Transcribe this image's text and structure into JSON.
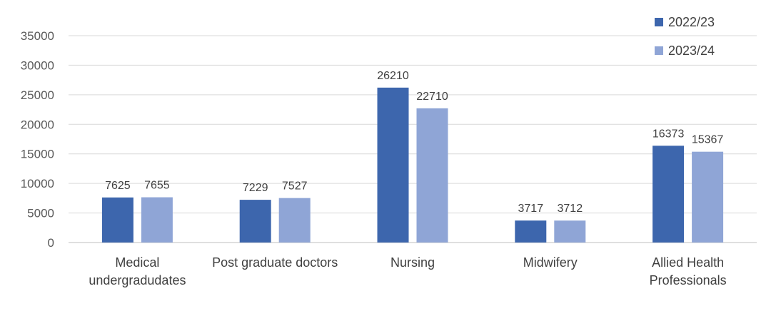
{
  "chart_data": {
    "type": "bar",
    "categories": [
      [
        "Medical",
        "undergradudates"
      ],
      [
        "Post graduate doctors"
      ],
      [
        "Nursing"
      ],
      [
        "Midwifery"
      ],
      [
        "Allied Health",
        "Professionals"
      ]
    ],
    "series": [
      {
        "name": "2022/23",
        "values": [
          7625,
          7229,
          26210,
          3717,
          16373
        ],
        "color": "#3d66ad"
      },
      {
        "name": "2023/24",
        "values": [
          7655,
          7527,
          22710,
          3712,
          15367
        ],
        "color": "#8fa5d6"
      }
    ],
    "ylim": [
      0,
      35000
    ],
    "yticks": [
      0,
      5000,
      10000,
      15000,
      20000,
      25000,
      30000,
      35000
    ],
    "grid": true,
    "legend": "top-right",
    "data_labels": true
  }
}
